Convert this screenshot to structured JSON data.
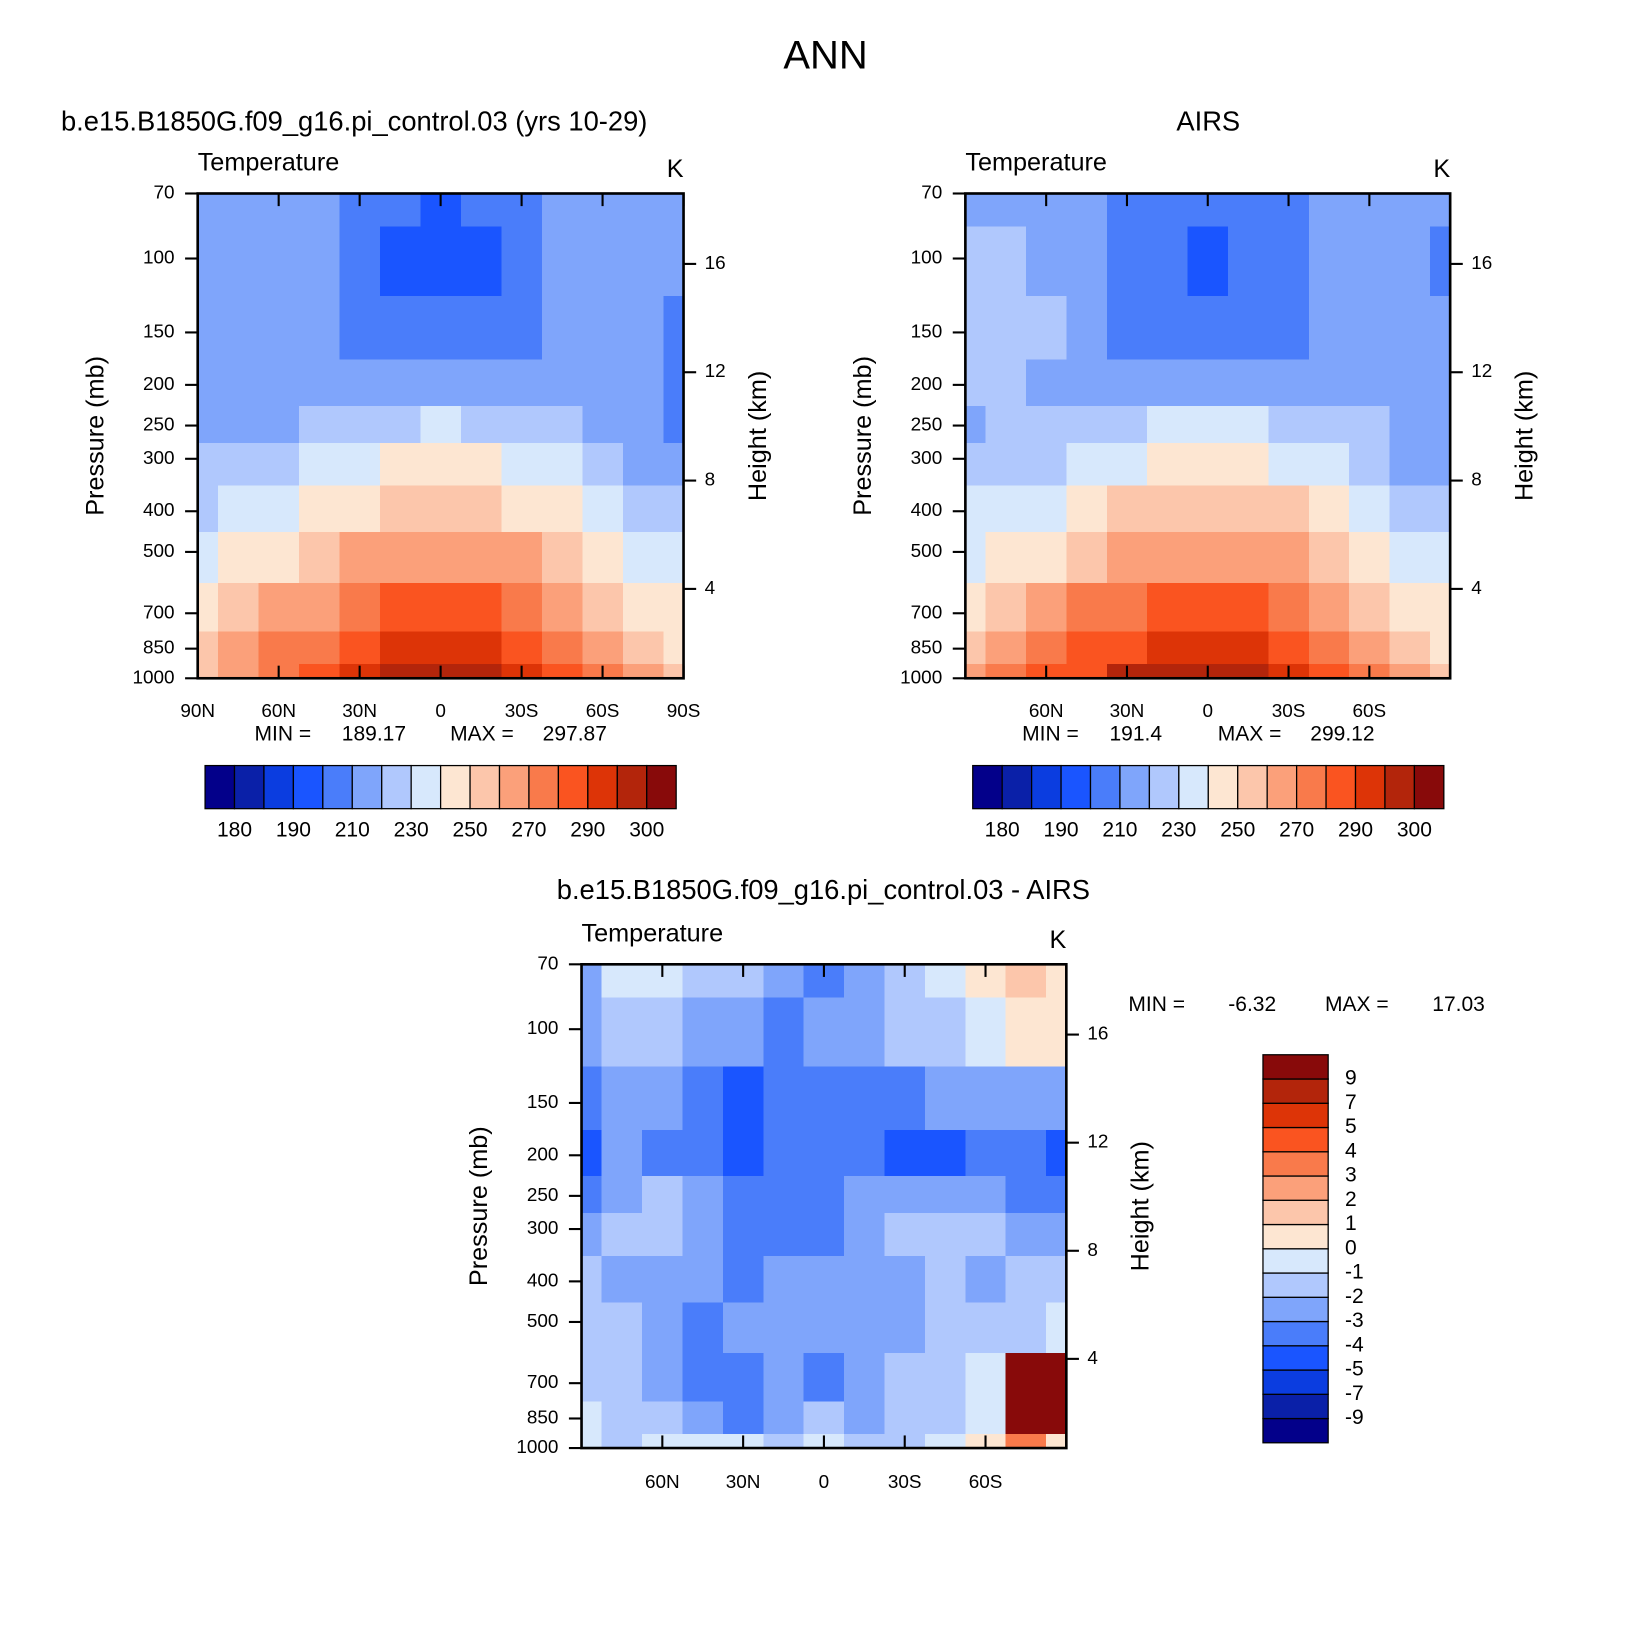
{
  "title": "ANN",
  "chart_data": [
    {
      "type": "contour",
      "title": "b.e15.B1850G.f09_g16.pi_control.03 (yrs 10-29)",
      "subtitle_left": "Temperature",
      "subtitle_right": "K",
      "ylabel": "Pressure (mb)",
      "y2label": "Height (km)",
      "x": [
        90,
        75,
        60,
        45,
        30,
        15,
        0,
        -15,
        -30,
        -45,
        -60,
        -75,
        -90
      ],
      "y": [
        1000,
        850,
        700,
        500,
        400,
        300,
        250,
        200,
        150,
        100,
        70
      ],
      "z": [
        [
          258,
          268,
          278,
          287,
          294,
          297,
          298,
          297,
          293,
          284,
          272,
          262,
          250
        ],
        [
          252,
          262,
          270,
          278,
          286,
          290,
          291,
          290,
          286,
          277,
          266,
          256,
          246
        ],
        [
          245,
          252,
          260,
          268,
          276,
          281,
          283,
          281,
          276,
          268,
          258,
          248,
          240
        ],
        [
          235,
          240,
          245,
          252,
          260,
          265,
          267,
          265,
          260,
          252,
          243,
          236,
          230
        ],
        [
          228,
          230,
          233,
          240,
          248,
          254,
          256,
          254,
          248,
          240,
          232,
          226,
          222
        ],
        [
          220,
          222,
          225,
          230,
          236,
          240,
          242,
          240,
          236,
          230,
          224,
          216,
          210
        ],
        [
          215,
          215,
          218,
          222,
          226,
          229,
          230,
          229,
          226,
          222,
          218,
          212,
          208
        ],
        [
          215,
          215,
          214,
          213,
          214,
          215,
          215,
          215,
          214,
          214,
          213,
          210,
          206
        ],
        [
          215,
          215,
          214,
          210,
          206,
          205,
          205,
          205,
          206,
          210,
          213,
          212,
          208
        ],
        [
          215,
          215,
          214,
          211,
          204,
          198,
          195,
          198,
          204,
          211,
          214,
          214,
          212
        ],
        [
          215,
          215,
          214,
          212,
          206,
          200,
          198,
          200,
          206,
          212,
          214,
          214,
          212
        ]
      ],
      "xlim": [
        90,
        -90
      ],
      "xticks": [
        {
          "value": 90,
          "label": "90N"
        },
        {
          "value": 60,
          "label": "60N"
        },
        {
          "value": 30,
          "label": "30N"
        },
        0,
        {
          "value": -30,
          "label": "30S"
        },
        {
          "value": -60,
          "label": "60S"
        },
        {
          "value": -90,
          "label": "90S"
        }
      ],
      "ylim": [
        1000,
        70
      ],
      "yticks": [
        70,
        100,
        150,
        200,
        250,
        300,
        400,
        500,
        700,
        850,
        1000
      ],
      "log_y": true,
      "y2lim": [
        0.7,
        18.6
      ],
      "y2ticks": [
        4,
        8,
        12,
        16
      ],
      "min_label": "MIN =",
      "min": 189.17,
      "max_label": "MAX =",
      "max": 297.87,
      "colorbar": {
        "orientation": "horizontal",
        "levels": [
          180,
          185,
          190,
          200,
          210,
          220,
          230,
          240,
          250,
          260,
          270,
          280,
          290,
          295,
          300
        ],
        "ticks": [
          180,
          190,
          210,
          230,
          250,
          270,
          290,
          300
        ],
        "colors": [
          "#03008a",
          "#0a20a8",
          "#0b3de0",
          "#1a55ff",
          "#4a7dfa",
          "#7fa5fb",
          "#b0c8fd",
          "#d7e8fc",
          "#fde6d2",
          "#fcc6ab",
          "#fba07a",
          "#f97a4b",
          "#fa5420",
          "#dd3407",
          "#b3250b",
          "#880a0a"
        ]
      }
    },
    {
      "type": "contour",
      "title": "AIRS",
      "subtitle_left": "Temperature",
      "subtitle_right": "K",
      "ylabel": "Pressure (mb)",
      "y2label": "Height (km)",
      "x": [
        90,
        75,
        60,
        45,
        30,
        15,
        0,
        -15,
        -30,
        -45,
        -60,
        -75,
        -90
      ],
      "y": [
        1000,
        850,
        700,
        500,
        400,
        300,
        250,
        200,
        150,
        100,
        70
      ],
      "z": [
        [
          262,
          270,
          280,
          288,
          295,
          298,
          299,
          298,
          294,
          285,
          274,
          262,
          250
        ],
        [
          256,
          263,
          272,
          280,
          287,
          291,
          292,
          291,
          287,
          278,
          267,
          256,
          244
        ],
        [
          248,
          254,
          262,
          270,
          278,
          283,
          284,
          283,
          278,
          269,
          259,
          248,
          240
        ],
        [
          238,
          242,
          248,
          254,
          262,
          267,
          268,
          267,
          262,
          254,
          245,
          238,
          235
        ],
        [
          230,
          232,
          236,
          243,
          250,
          256,
          258,
          256,
          250,
          242,
          235,
          228,
          225
        ],
        [
          222,
          224,
          227,
          232,
          238,
          243,
          245,
          243,
          238,
          232,
          226,
          218,
          214
        ],
        [
          218,
          222,
          224,
          224,
          228,
          232,
          233,
          232,
          228,
          224,
          220,
          214,
          210
        ],
        [
          224,
          225,
          219,
          216,
          216,
          218,
          218,
          218,
          216,
          216,
          216,
          213,
          212
        ],
        [
          226,
          226,
          220,
          215,
          209,
          207,
          206,
          207,
          209,
          214,
          216,
          214,
          212
        ],
        [
          224,
          225,
          218,
          214,
          206,
          200,
          198,
          200,
          206,
          214,
          216,
          214,
          209
        ],
        [
          218,
          218,
          216,
          214,
          208,
          202,
          200,
          202,
          208,
          214,
          216,
          214,
          212
        ]
      ],
      "xlim": [
        90,
        -90
      ],
      "xticks": [
        {
          "value": 60,
          "label": "60N"
        },
        {
          "value": 30,
          "label": "30N"
        },
        0,
        {
          "value": -30,
          "label": "30S"
        },
        {
          "value": -60,
          "label": "60S"
        }
      ],
      "ylim": [
        1000,
        70
      ],
      "yticks": [
        70,
        100,
        150,
        200,
        250,
        300,
        400,
        500,
        700,
        850,
        1000
      ],
      "log_y": true,
      "y2lim": [
        0.7,
        18.6
      ],
      "y2ticks": [
        4,
        8,
        12,
        16
      ],
      "min_label": "MIN =",
      "min": 191.4,
      "max_label": "MAX =",
      "max": 299.12,
      "colorbar": {
        "orientation": "horizontal",
        "levels": [
          180,
          185,
          190,
          200,
          210,
          220,
          230,
          240,
          250,
          260,
          270,
          280,
          290,
          295,
          300
        ],
        "ticks": [
          180,
          190,
          210,
          230,
          250,
          270,
          290,
          300
        ],
        "colors": [
          "#03008a",
          "#0a20a8",
          "#0b3de0",
          "#1a55ff",
          "#4a7dfa",
          "#7fa5fb",
          "#b0c8fd",
          "#d7e8fc",
          "#fde6d2",
          "#fcc6ab",
          "#fba07a",
          "#f97a4b",
          "#fa5420",
          "#dd3407",
          "#b3250b",
          "#880a0a"
        ]
      }
    },
    {
      "type": "contour",
      "title": "b.e15.B1850G.f09_g16.pi_control.03 - AIRS",
      "subtitle_left": "Temperature",
      "subtitle_right": "K",
      "ylabel": "Pressure (mb)",
      "y2label": "Height (km)",
      "x": [
        90,
        75,
        60,
        45,
        30,
        15,
        0,
        -15,
        -30,
        -45,
        -60,
        -75,
        -90
      ],
      "y": [
        1000,
        850,
        700,
        500,
        400,
        300,
        250,
        200,
        150,
        100,
        70
      ],
      "z": [
        [
          -1,
          -2,
          -1,
          -0.5,
          -1,
          -1.5,
          -1,
          -1.5,
          -2,
          -1,
          0.5,
          3,
          0
        ],
        [
          -1,
          -1.5,
          -2,
          -3,
          -3.5,
          -2.5,
          -2,
          -2.5,
          -2,
          -1.5,
          -1,
          9,
          12
        ],
        [
          -1.5,
          -2,
          -3,
          -3.5,
          -3.5,
          -3,
          -3.5,
          -2.5,
          -2,
          -1.5,
          -1,
          10,
          17
        ],
        [
          -1.5,
          -2,
          -2.5,
          -3.5,
          -3,
          -3,
          -2.5,
          -3,
          -2.5,
          -1.5,
          -2,
          -1.5,
          -1
        ],
        [
          -2,
          -2.5,
          -2.5,
          -3,
          -3.5,
          -3,
          -2.5,
          -3,
          -2.5,
          -2,
          -2.5,
          -2,
          -1.5
        ],
        [
          -2.5,
          -2,
          -1.5,
          -3,
          -3.5,
          -3.5,
          -3.5,
          -3,
          -2,
          -1.5,
          -2,
          -3,
          -2.5
        ],
        [
          -3.5,
          -2.5,
          -2,
          -3,
          -3.5,
          -3.5,
          -3.5,
          -3,
          -2.5,
          -2.5,
          -3,
          -3.5,
          -4
        ],
        [
          -4.5,
          -3,
          -3.5,
          -3.5,
          -4.2,
          -3.5,
          -3.5,
          -3.5,
          -4.2,
          -4.2,
          -3.5,
          -3.5,
          -4.2
        ],
        [
          -3.5,
          -2.5,
          -3,
          -3.5,
          -4.2,
          -3.5,
          -3.5,
          -3.5,
          -3.5,
          -3,
          -2.5,
          -2.5,
          -3
        ],
        [
          -3,
          -2,
          -1.5,
          -2.5,
          -3,
          -3.5,
          -3,
          -2.5,
          -2,
          -1.5,
          -0.5,
          0.5,
          0
        ],
        [
          -3,
          -1,
          -0.5,
          -2,
          -2,
          -3,
          -3.5,
          -2.5,
          -1.5,
          -1,
          0.5,
          1.5,
          0.5
        ]
      ],
      "xlim": [
        90,
        -90
      ],
      "xticks": [
        {
          "value": 60,
          "label": "60N"
        },
        {
          "value": 30,
          "label": "30N"
        },
        0,
        {
          "value": -30,
          "label": "30S"
        },
        {
          "value": -60,
          "label": "60S"
        }
      ],
      "ylim": [
        1000,
        70
      ],
      "yticks": [
        70,
        100,
        150,
        200,
        250,
        300,
        400,
        500,
        700,
        850,
        1000
      ],
      "log_y": true,
      "y2lim": [
        0.7,
        18.6
      ],
      "y2ticks": [
        4,
        8,
        12,
        16
      ],
      "min_label": "MIN =",
      "min": -6.32,
      "max_label": "MAX =",
      "max": 17.03,
      "colorbar": {
        "orientation": "vertical",
        "levels": [
          -9,
          -7,
          -5,
          -4,
          -3,
          -2,
          -1,
          0,
          1,
          2,
          3,
          4,
          5,
          7,
          9
        ],
        "ticks": [
          -9,
          -7,
          -5,
          -4,
          -3,
          -2,
          -1,
          0,
          1,
          2,
          3,
          4,
          5,
          7,
          9
        ],
        "colors": [
          "#03008a",
          "#0a20a8",
          "#0b3de0",
          "#1a55ff",
          "#4a7dfa",
          "#7fa5fb",
          "#b0c8fd",
          "#d7e8fc",
          "#fde6d2",
          "#fcc6ab",
          "#fba07a",
          "#f97a4b",
          "#fa5420",
          "#dd3407",
          "#b3250b",
          "#880a0a"
        ]
      }
    }
  ]
}
